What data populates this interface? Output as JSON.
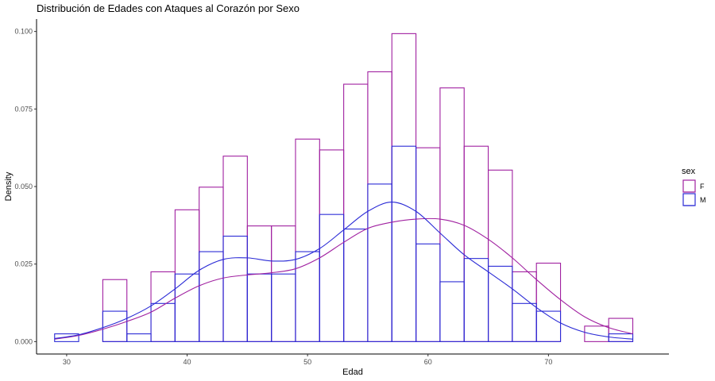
{
  "chart_data": {
    "type": "histogram",
    "title": "Distribución de Edades con Ataques al Corazón por Sexo",
    "xlabel": "Edad",
    "ylabel": "Density",
    "xlim": [
      27.5,
      80
    ],
    "ylim": [
      -0.004,
      0.104
    ],
    "x_ticks": [
      30,
      40,
      50,
      60,
      70
    ],
    "x_tick_labels": [
      "30",
      "40",
      "50",
      "60",
      "70"
    ],
    "y_ticks": [
      0,
      0.025,
      0.05,
      0.075,
      0.1
    ],
    "y_tick_labels": [
      "0.000",
      "0.025",
      "0.050",
      "0.075",
      "0.100"
    ],
    "bin_width": 2,
    "bin_starts": [
      29,
      31,
      33,
      35,
      37,
      39,
      41,
      43,
      45,
      47,
      49,
      51,
      53,
      55,
      57,
      59,
      61,
      63,
      65,
      67,
      69,
      71,
      73,
      75
    ],
    "series": [
      {
        "name": "F",
        "color": "#a020a0",
        "values": [
          0,
          0,
          0.02,
          0,
          0.0225,
          0.0425,
          0.0498,
          0.0598,
          0.0373,
          0.0373,
          0.0653,
          0.0618,
          0.083,
          0.087,
          0.0993,
          0.0625,
          0.0818,
          0.063,
          0.0553,
          0.0225,
          0.0253,
          0,
          0.005,
          0.0075
        ],
        "density_x": [
          29,
          31,
          33,
          35,
          37,
          39,
          41,
          43,
          45,
          47,
          49,
          51,
          53,
          55,
          57,
          59,
          61,
          63,
          65,
          67,
          69,
          71,
          73,
          75,
          77
        ],
        "density_y": [
          0.0008,
          0.002,
          0.004,
          0.0065,
          0.0095,
          0.014,
          0.018,
          0.0205,
          0.0215,
          0.0222,
          0.0235,
          0.027,
          0.032,
          0.0365,
          0.0385,
          0.0395,
          0.0395,
          0.0375,
          0.033,
          0.027,
          0.02,
          0.0135,
          0.008,
          0.0045,
          0.0025
        ]
      },
      {
        "name": "M",
        "color": "#2b2bd6",
        "values": [
          0.0025,
          0,
          0.0098,
          0.0025,
          0.0123,
          0.0218,
          0.029,
          0.034,
          0.0218,
          0.0218,
          0.029,
          0.041,
          0.0363,
          0.0508,
          0.063,
          0.0315,
          0.0193,
          0.0268,
          0.0243,
          0.0123,
          0.0098,
          0,
          0,
          0.0025
        ],
        "density_x": [
          29,
          31,
          33,
          35,
          37,
          39,
          41,
          43,
          45,
          47,
          49,
          51,
          53,
          55,
          57,
          59,
          61,
          63,
          65,
          67,
          69,
          71,
          73,
          75,
          77
        ],
        "density_y": [
          0.001,
          0.0022,
          0.0045,
          0.0075,
          0.0115,
          0.017,
          0.023,
          0.0265,
          0.027,
          0.026,
          0.0265,
          0.03,
          0.036,
          0.042,
          0.045,
          0.042,
          0.035,
          0.028,
          0.0225,
          0.017,
          0.011,
          0.006,
          0.003,
          0.0015,
          0.0008
        ]
      }
    ],
    "legend": {
      "title": "sex",
      "position": "right",
      "entries": [
        "F",
        "M"
      ]
    },
    "grid": false
  }
}
